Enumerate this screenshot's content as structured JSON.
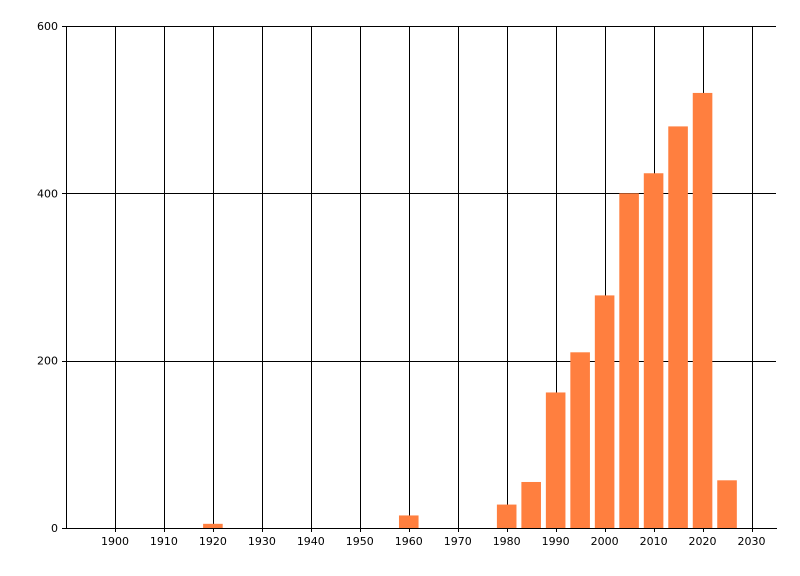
{
  "chart_data": {
    "type": "bar",
    "title": "",
    "xlabel": "",
    "ylabel": "",
    "xlim": [
      1890,
      2035
    ],
    "ylim": [
      0,
      600
    ],
    "x_ticks": [
      1900,
      1910,
      1920,
      1930,
      1940,
      1950,
      1960,
      1970,
      1980,
      1990,
      2000,
      2010,
      2020,
      2030
    ],
    "y_ticks": [
      0,
      200,
      400,
      600
    ],
    "grid": {
      "x": true,
      "y": true
    },
    "bar_width_years": 4,
    "bar_color": "#FF7F3F",
    "series": [
      {
        "x": [
          1920,
          1960,
          1980,
          1985,
          1990,
          1995,
          2000,
          2005,
          2010,
          2015,
          2020,
          2025
        ],
        "values": [
          5,
          15,
          28,
          55,
          162,
          210,
          278,
          400,
          424,
          480,
          520,
          57
        ]
      }
    ]
  }
}
